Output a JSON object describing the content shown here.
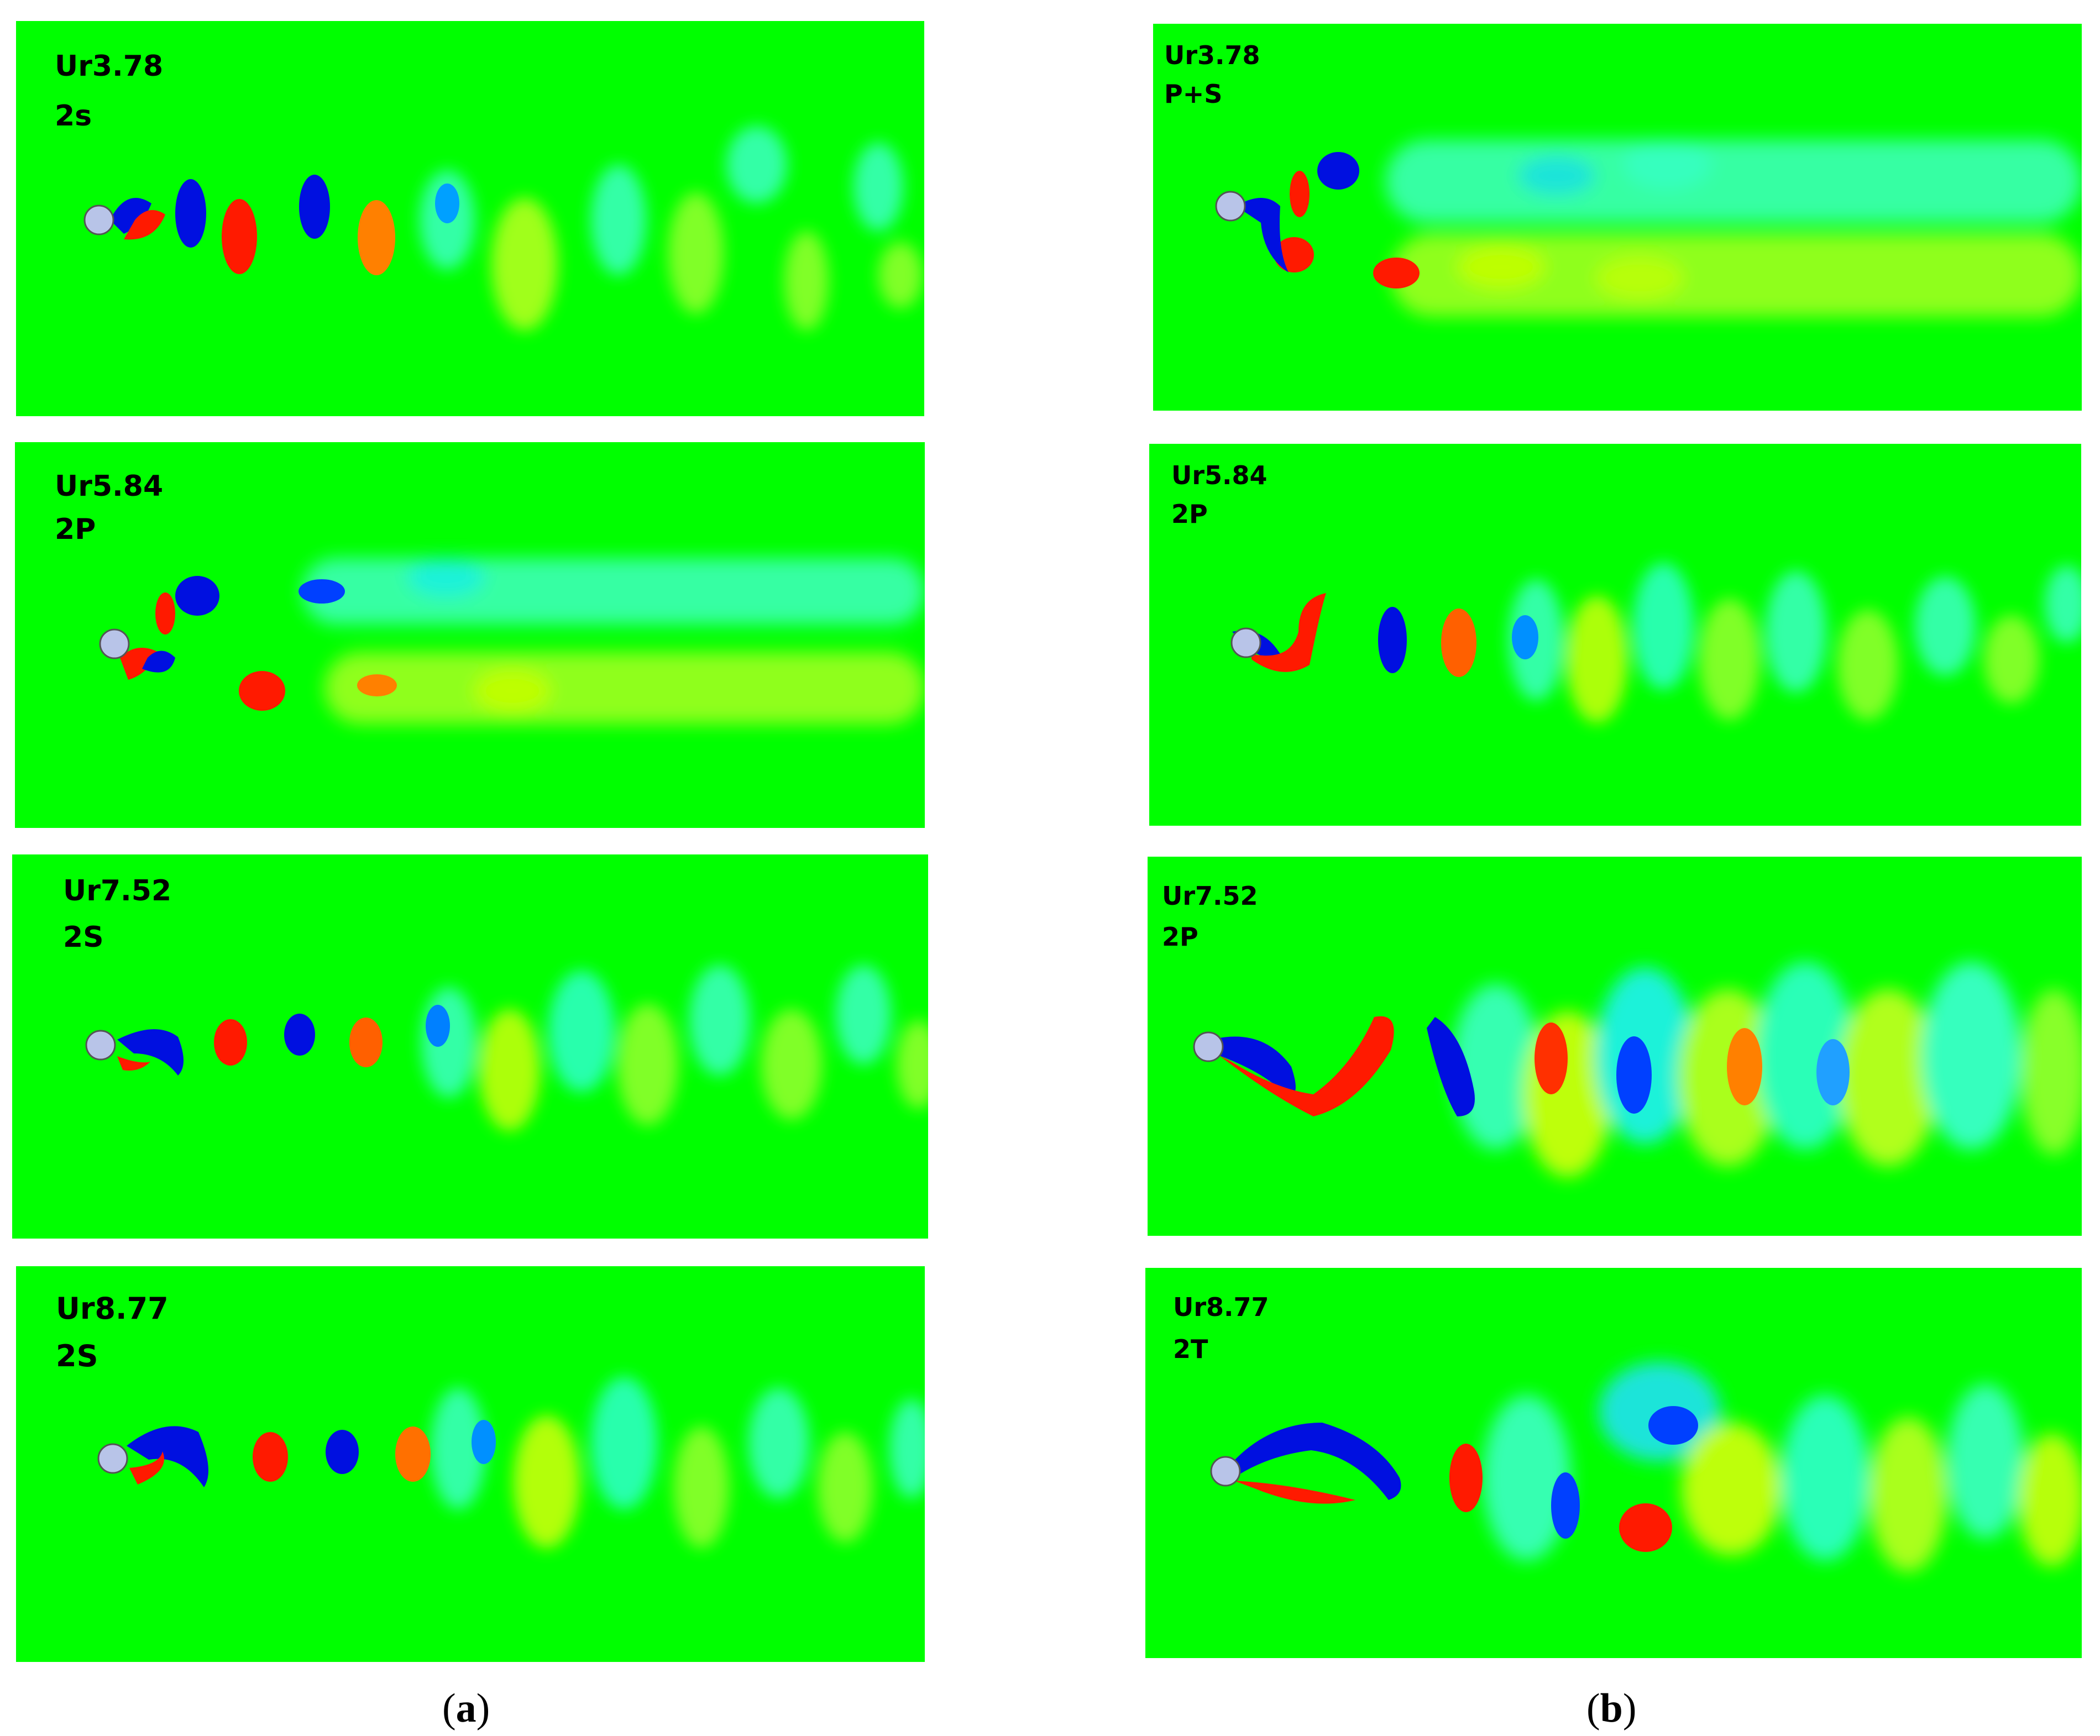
{
  "colors": {
    "background": "#00ff00",
    "strong_positive": "#ff1a00",
    "strong_negative": "#0010e0",
    "weak_positive": "#d8ff00",
    "weak_negative": "#00ffd0",
    "cylinder": "#b8c4e8"
  },
  "column_a": {
    "caption_open": "(",
    "caption_letter": "a",
    "caption_close": ")",
    "panels": [
      {
        "ur": "Ur3.78",
        "mode": "2s"
      },
      {
        "ur": "Ur5.84",
        "mode": "2P"
      },
      {
        "ur": "Ur7.52",
        "mode": "2S"
      },
      {
        "ur": "Ur8.77",
        "mode": "2S"
      }
    ]
  },
  "column_b": {
    "caption_open": "(",
    "caption_letter": "b",
    "caption_close": ")",
    "panels": [
      {
        "ur": "Ur3.78",
        "mode": "P+S"
      },
      {
        "ur": "Ur5.84",
        "mode": "2P"
      },
      {
        "ur": "Ur7.52",
        "mode": "2P"
      },
      {
        "ur": "Ur8.77",
        "mode": "2T"
      }
    ]
  }
}
